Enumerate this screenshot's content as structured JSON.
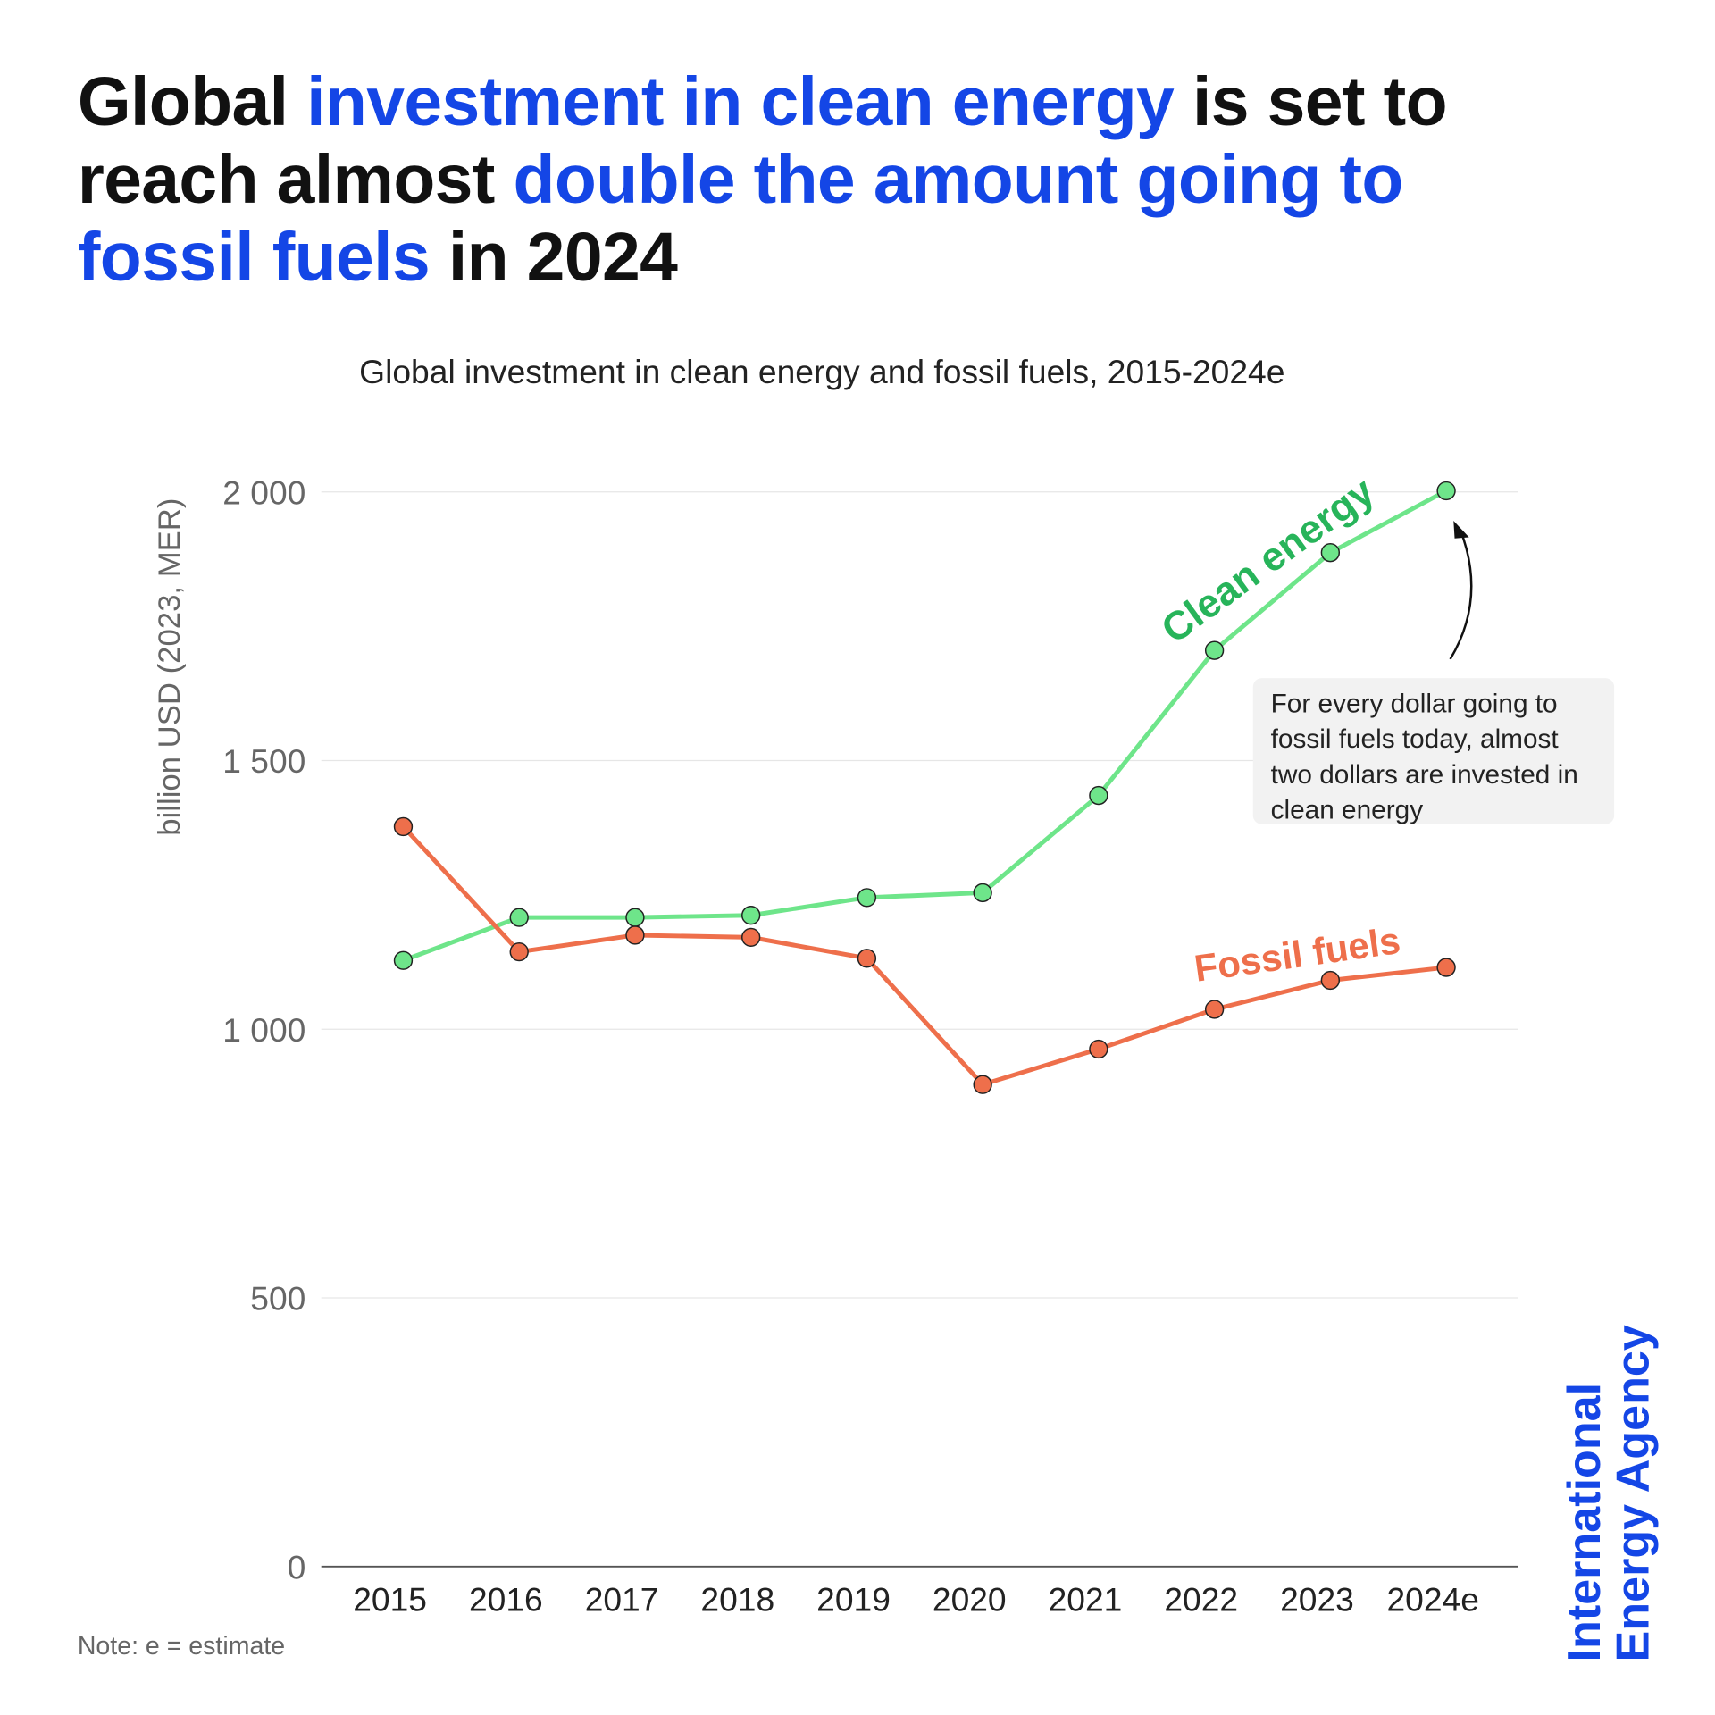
{
  "title": {
    "parts": [
      {
        "text": "Global ",
        "highlight": false
      },
      {
        "text": "investment in clean energy",
        "highlight": true
      },
      {
        "text": " is set to reach almost ",
        "highlight": false
      },
      {
        "text": "double the amount going to fossil fuels",
        "highlight": true
      },
      {
        "text": " in 2024",
        "highlight": false
      }
    ]
  },
  "colors": {
    "highlight": "#1446e6",
    "clean": "#6ee58a",
    "clean_label": "#27b45a",
    "fossil": "#ee6f4b"
  },
  "note": "Note: e = estimate",
  "logo": {
    "line1": "International",
    "line2": "Energy Agency"
  },
  "annotation": "For every dollar going to fossil fuels today, almost two dollars are invested in clean energy",
  "chart_data": {
    "type": "line",
    "title": "Global investment in clean energy and fossil fuels, 2015-2024e",
    "ylabel": "billion USD (2023, MER)",
    "xlabel": "",
    "ylim": [
      0,
      2000
    ],
    "yticks": [
      0,
      500,
      1000,
      1500,
      2000
    ],
    "ytick_labels": [
      "0",
      "500",
      "1 000",
      "1 500",
      "2 000"
    ],
    "grid": true,
    "categories": [
      "2015",
      "2016",
      "2017",
      "2018",
      "2019",
      "2020",
      "2021",
      "2022",
      "2023",
      "2024e"
    ],
    "series": [
      {
        "name": "Clean energy",
        "values": [
          1128,
          1208,
          1208,
          1212,
          1245,
          1254,
          1435,
          1705,
          1887,
          2002
        ]
      },
      {
        "name": "Fossil fuels",
        "values": [
          1377,
          1144,
          1175,
          1171,
          1132,
          897,
          963,
          1037,
          1091,
          1115
        ]
      }
    ]
  }
}
